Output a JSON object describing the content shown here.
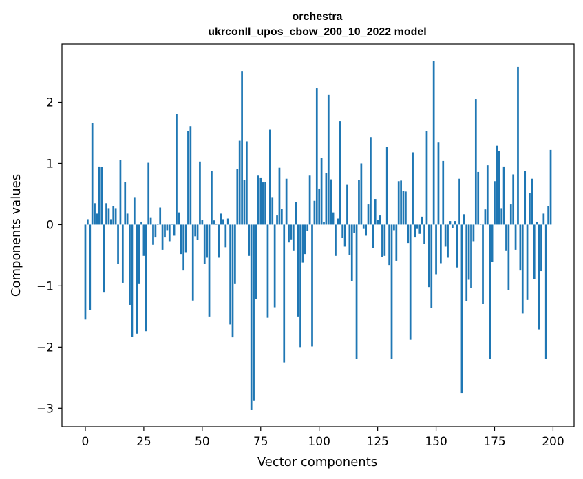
{
  "chart_data": {
    "type": "bar",
    "title": "orchestra",
    "subtitle": "ukrconll_upos_cbow_200_10_2022 model",
    "xlabel": "Vector components",
    "ylabel": "Components values",
    "xlim": [
      -10,
      209
    ],
    "ylim": [
      -3.3,
      2.95
    ],
    "xticks": [
      0,
      25,
      50,
      75,
      100,
      125,
      150,
      175,
      200
    ],
    "yticks": [
      2,
      1,
      0,
      -1,
      -2,
      -3
    ],
    "ytick_labels": [
      "2",
      "1",
      "0",
      "−1",
      "−2",
      "−3"
    ],
    "bar_color": "#1f77b4",
    "grid": false,
    "x": [
      0,
      1,
      2,
      3,
      4,
      5,
      6,
      7,
      8,
      9,
      10,
      11,
      12,
      13,
      14,
      15,
      16,
      17,
      18,
      19,
      20,
      21,
      22,
      23,
      24,
      25,
      26,
      27,
      28,
      29,
      30,
      31,
      32,
      33,
      34,
      35,
      36,
      37,
      38,
      39,
      40,
      41,
      42,
      43,
      44,
      45,
      46,
      47,
      48,
      49,
      50,
      51,
      52,
      53,
      54,
      55,
      56,
      57,
      58,
      59,
      60,
      61,
      62,
      63,
      64,
      65,
      66,
      67,
      68,
      69,
      70,
      71,
      72,
      73,
      74,
      75,
      76,
      77,
      78,
      79,
      80,
      81,
      82,
      83,
      84,
      85,
      86,
      87,
      88,
      89,
      90,
      91,
      92,
      93,
      94,
      95,
      96,
      97,
      98,
      99,
      100,
      101,
      102,
      103,
      104,
      105,
      106,
      107,
      108,
      109,
      110,
      111,
      112,
      113,
      114,
      115,
      116,
      117,
      118,
      119,
      120,
      121,
      122,
      123,
      124,
      125,
      126,
      127,
      128,
      129,
      130,
      131,
      132,
      133,
      134,
      135,
      136,
      137,
      138,
      139,
      140,
      141,
      142,
      143,
      144,
      145,
      146,
      147,
      148,
      149,
      150,
      151,
      152,
      153,
      154,
      155,
      156,
      157,
      158,
      159,
      160,
      161,
      162,
      163,
      164,
      165,
      166,
      167,
      168,
      169,
      170,
      171,
      172,
      173,
      174,
      175,
      176,
      177,
      178,
      179,
      180,
      181,
      182,
      183,
      184,
      185,
      186,
      187,
      188,
      189,
      190,
      191,
      192,
      193,
      194,
      195,
      196,
      197,
      198,
      199
    ],
    "values": [
      -1.55,
      0.09,
      -1.39,
      1.66,
      0.35,
      0.18,
      0.95,
      0.94,
      -1.11,
      0.35,
      0.27,
      0.09,
      0.3,
      0.27,
      -0.64,
      1.06,
      -0.95,
      0.7,
      0.18,
      -1.31,
      -1.83,
      0.45,
      -1.78,
      -0.96,
      0.05,
      -0.51,
      -1.74,
      1.01,
      0.11,
      -0.33,
      -0.21,
      0.01,
      0.28,
      -0.41,
      -0.21,
      -0.09,
      -0.27,
      0.01,
      -0.18,
      1.81,
      0.2,
      -0.48,
      -0.75,
      -0.45,
      1.53,
      1.61,
      -1.24,
      -0.19,
      -0.25,
      1.03,
      0.08,
      -0.64,
      -0.54,
      -1.5,
      0.88,
      0.07,
      0.01,
      -0.54,
      0.18,
      0.09,
      -0.37,
      0.1,
      -1.63,
      -1.84,
      -0.96,
      0.91,
      1.37,
      2.51,
      0.73,
      1.36,
      -0.51,
      -3.03,
      -2.87,
      -1.22,
      0.8,
      0.77,
      0.69,
      0.7,
      -1.52,
      1.55,
      0.45,
      -1.35,
      0.15,
      0.93,
      0.26,
      -2.25,
      0.75,
      -0.29,
      -0.24,
      -0.42,
      0.37,
      -1.5,
      -2.0,
      -0.62,
      -0.48,
      -0.1,
      0.8,
      -1.99,
      0.39,
      2.23,
      0.59,
      1.09,
      0.05,
      0.84,
      2.12,
      0.74,
      0.2,
      -0.51,
      0.1,
      1.69,
      -0.22,
      -0.36,
      0.65,
      -0.49,
      -0.92,
      -0.13,
      -2.19,
      0.73,
      1.0,
      -0.07,
      -0.18,
      0.33,
      1.43,
      -0.38,
      0.42,
      0.08,
      0.15,
      -0.53,
      -0.51,
      1.27,
      -0.66,
      -2.19,
      -0.09,
      -0.59,
      0.71,
      0.72,
      0.55,
      0.54,
      -0.3,
      -1.88,
      1.18,
      -0.21,
      -0.07,
      -0.15,
      0.13,
      -0.32,
      1.53,
      -1.02,
      -1.36,
      2.68,
      -0.81,
      1.34,
      -0.63,
      1.04,
      -0.36,
      -0.54,
      0.06,
      -0.06,
      0.06,
      -0.7,
      0.75,
      -2.75,
      0.17,
      -1.25,
      -0.9,
      -1.03,
      -0.27,
      2.05,
      0.86,
      0.01,
      -1.29,
      0.25,
      0.97,
      -2.19,
      -0.61,
      0.71,
      1.29,
      1.2,
      0.27,
      0.95,
      -0.42,
      -1.07,
      0.33,
      0.82,
      -0.41,
      2.58,
      -0.75,
      -1.45,
      0.88,
      -1.23,
      0.52,
      0.75,
      -0.89,
      0.05,
      -1.71,
      -0.76,
      0.18,
      -2.19,
      0.3,
      1.22
    ]
  }
}
